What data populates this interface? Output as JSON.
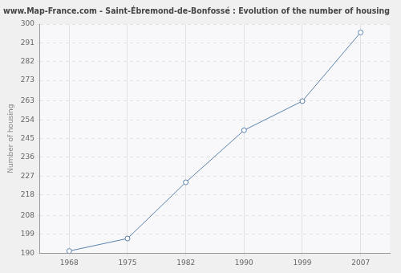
{
  "chart_data": {
    "type": "line",
    "title": "www.Map-France.com - Saint-Ébremond-de-Bonfossé : Evolution of the number of housing",
    "y_label": "Number of housing",
    "categories": [
      "1968",
      "1975",
      "1982",
      "1990",
      "1999",
      "2007"
    ],
    "values": [
      191,
      197,
      224,
      249,
      263,
      296
    ],
    "color": "#5b82ab",
    "marker": "circle",
    "ylim": [
      190,
      300
    ],
    "yticks": [
      190,
      199,
      208,
      218,
      227,
      236,
      245,
      254,
      263,
      273,
      282,
      291,
      300
    ],
    "grid": true
  }
}
